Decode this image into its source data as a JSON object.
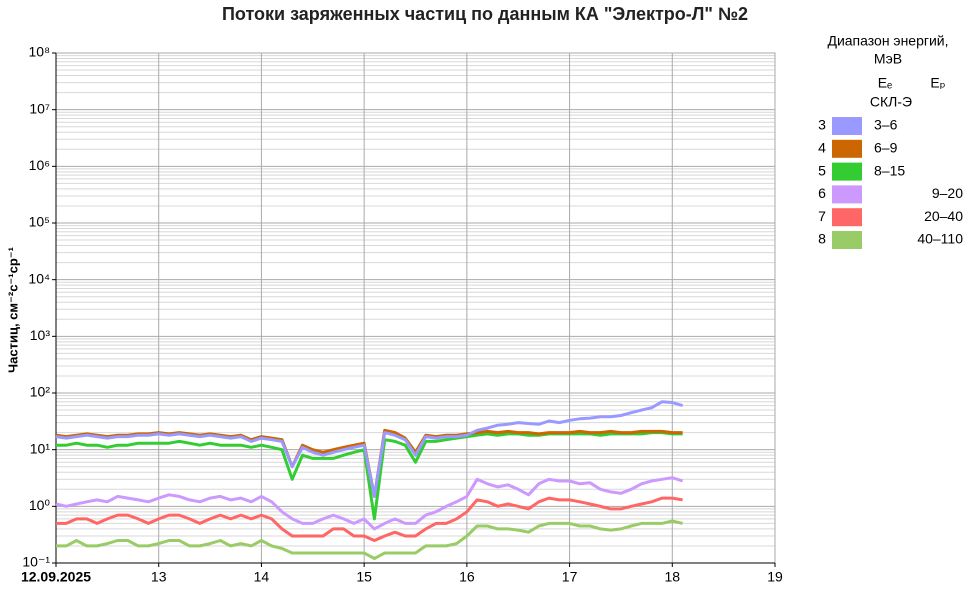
{
  "chart_data": {
    "type": "line",
    "title": "Потоки заряженных частиц по данным КА \"Электро-Л\" №2",
    "y_label": "Частиц, см⁻²с⁻¹ср⁻¹",
    "log_y": true,
    "grid": true,
    "legend_position": "right",
    "legend_title": [
      "Диапазон энергий,",
      "МэВ"
    ],
    "legend_headers": [
      "Eₑ",
      "Eₚ"
    ],
    "legend_group": "СКЛ-Э",
    "xlim": [
      12,
      19
    ],
    "xticks": [
      {
        "value": 12,
        "label": "12.09.2025"
      },
      13,
      14,
      15,
      16,
      17,
      18,
      19
    ],
    "ylim": [
      0.1,
      100000000
    ],
    "yticks": [
      {
        "value": 0.1,
        "label": "10⁻¹"
      },
      {
        "value": 1,
        "label": "10⁰"
      },
      {
        "value": 10,
        "label": "10¹"
      },
      {
        "value": 100,
        "label": "10²"
      },
      {
        "value": 1000,
        "label": "10³"
      },
      {
        "value": 10000,
        "label": "10⁴"
      },
      {
        "value": 100000,
        "label": "10⁵"
      },
      {
        "value": 1000000,
        "label": "10⁶"
      },
      {
        "value": 10000000,
        "label": "10⁷"
      },
      {
        "value": 100000000,
        "label": "10⁸"
      }
    ],
    "x": [
      12,
      12.1,
      12.2,
      12.3,
      12.4,
      12.5,
      12.6,
      12.7,
      12.8,
      12.9,
      13,
      13.1,
      13.2,
      13.3,
      13.4,
      13.5,
      13.6,
      13.7,
      13.8,
      13.9,
      14,
      14.1,
      14.2,
      14.3,
      14.4,
      14.5,
      14.6,
      14.7,
      14.8,
      14.9,
      15,
      15.1,
      15.2,
      15.3,
      15.4,
      15.5,
      15.6,
      15.7,
      15.8,
      15.9,
      16,
      16.1,
      16.2,
      16.3,
      16.4,
      16.5,
      16.6,
      16.7,
      16.8,
      16.9,
      17,
      17.1,
      17.2,
      17.3,
      17.4,
      17.5,
      17.6,
      17.7,
      17.8,
      17.9,
      18,
      18.1
    ],
    "series": [
      {
        "channel": "3",
        "name": "3–6",
        "particle": "e",
        "color": "#9999ff",
        "values": [
          17,
          16,
          17,
          18,
          17,
          16,
          17,
          17,
          18,
          18,
          19,
          18,
          19,
          18,
          17,
          18,
          17,
          16,
          17,
          14,
          16,
          15,
          14,
          5,
          11,
          9,
          8,
          9,
          10,
          11,
          12,
          1.5,
          20,
          18,
          15,
          8,
          17,
          16,
          17,
          17,
          18,
          22,
          24,
          27,
          28,
          30,
          29,
          28,
          32,
          30,
          33,
          35,
          36,
          38,
          38,
          40,
          45,
          50,
          55,
          70,
          68,
          60
        ]
      },
      {
        "channel": "4",
        "name": "6–9",
        "particle": "e",
        "color": "#cc6600",
        "values": [
          18,
          17,
          18,
          19,
          18,
          17,
          18,
          18,
          19,
          19,
          20,
          19,
          20,
          19,
          18,
          19,
          18,
          17,
          18,
          15,
          17,
          16,
          15,
          5,
          12,
          10,
          9,
          10,
          11,
          12,
          13,
          1.5,
          22,
          20,
          16,
          9,
          18,
          17,
          18,
          18,
          19,
          20,
          21,
          20,
          21,
          20,
          20,
          19,
          20,
          20,
          20,
          21,
          20,
          20,
          21,
          20,
          20,
          21,
          21,
          21,
          20,
          20
        ]
      },
      {
        "channel": "5",
        "name": "8–15",
        "particle": "e",
        "color": "#33cc33",
        "values": [
          12,
          12,
          13,
          12,
          12,
          11,
          12,
          12,
          13,
          13,
          13,
          13,
          14,
          13,
          12,
          13,
          12,
          12,
          12,
          11,
          12,
          11,
          10,
          3,
          8,
          7,
          7,
          7,
          8,
          9,
          10,
          0.6,
          15,
          14,
          12,
          6,
          14,
          14,
          15,
          16,
          17,
          18,
          19,
          18,
          19,
          19,
          18,
          18,
          19,
          19,
          19,
          19,
          19,
          18,
          19,
          19,
          19,
          19,
          20,
          20,
          19,
          19
        ]
      },
      {
        "channel": "6",
        "name": "9–20",
        "particle": "p",
        "color": "#cc99ff",
        "values": [
          1.1,
          1.0,
          1.1,
          1.2,
          1.3,
          1.2,
          1.5,
          1.4,
          1.3,
          1.2,
          1.4,
          1.6,
          1.5,
          1.3,
          1.2,
          1.4,
          1.5,
          1.3,
          1.4,
          1.2,
          1.5,
          1.2,
          0.8,
          0.6,
          0.5,
          0.5,
          0.6,
          0.7,
          0.6,
          0.5,
          0.6,
          0.4,
          0.5,
          0.6,
          0.5,
          0.5,
          0.7,
          0.8,
          1.0,
          1.2,
          1.5,
          3.0,
          2.5,
          2.2,
          2.4,
          2.0,
          1.6,
          2.5,
          3.0,
          2.8,
          2.8,
          2.5,
          2.6,
          2.0,
          1.8,
          1.7,
          2.0,
          2.5,
          2.8,
          3.0,
          3.2,
          2.8
        ]
      },
      {
        "channel": "7",
        "name": "20–40",
        "particle": "p",
        "color": "#ff6666",
        "values": [
          0.5,
          0.5,
          0.6,
          0.6,
          0.5,
          0.6,
          0.7,
          0.7,
          0.6,
          0.5,
          0.6,
          0.7,
          0.7,
          0.6,
          0.5,
          0.6,
          0.7,
          0.6,
          0.7,
          0.6,
          0.7,
          0.6,
          0.4,
          0.3,
          0.3,
          0.3,
          0.3,
          0.4,
          0.4,
          0.3,
          0.3,
          0.25,
          0.3,
          0.35,
          0.3,
          0.3,
          0.4,
          0.5,
          0.5,
          0.6,
          0.8,
          1.3,
          1.2,
          1.0,
          1.1,
          1.0,
          0.9,
          1.2,
          1.4,
          1.3,
          1.3,
          1.2,
          1.1,
          1.0,
          0.9,
          0.9,
          1.0,
          1.1,
          1.2,
          1.4,
          1.4,
          1.3
        ]
      },
      {
        "channel": "8",
        "name": "40–110",
        "particle": "p",
        "color": "#99cc66",
        "values": [
          0.2,
          0.2,
          0.25,
          0.2,
          0.2,
          0.22,
          0.25,
          0.25,
          0.2,
          0.2,
          0.22,
          0.25,
          0.25,
          0.2,
          0.2,
          0.22,
          0.25,
          0.2,
          0.22,
          0.2,
          0.25,
          0.2,
          0.18,
          0.15,
          0.15,
          0.15,
          0.15,
          0.15,
          0.15,
          0.15,
          0.15,
          0.12,
          0.15,
          0.15,
          0.15,
          0.15,
          0.2,
          0.2,
          0.2,
          0.22,
          0.3,
          0.45,
          0.45,
          0.4,
          0.4,
          0.38,
          0.35,
          0.45,
          0.5,
          0.5,
          0.5,
          0.45,
          0.45,
          0.4,
          0.38,
          0.4,
          0.45,
          0.5,
          0.5,
          0.5,
          0.55,
          0.5
        ]
      }
    ]
  }
}
